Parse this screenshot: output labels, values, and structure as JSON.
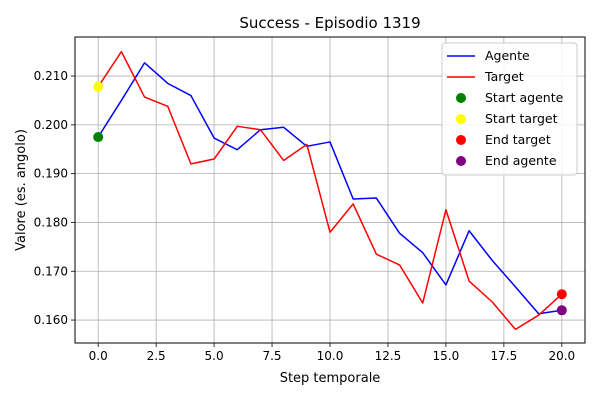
{
  "chart_data": {
    "type": "line",
    "title": "Success - Episodio 1319",
    "xlabel": "Step temporale",
    "ylabel": "Valore (es. angolo)",
    "xlim": [
      -1,
      21
    ],
    "ylim": [
      0.1553,
      0.218
    ],
    "xticks": [
      0.0,
      2.5,
      5.0,
      7.5,
      10.0,
      12.5,
      15.0,
      17.5,
      20.0
    ],
    "xtick_labels": [
      "0.0",
      "2.5",
      "5.0",
      "7.5",
      "10.0",
      "12.5",
      "15.0",
      "17.5",
      "20.0"
    ],
    "yticks": [
      0.16,
      0.17,
      0.18,
      0.19,
      0.2,
      0.21
    ],
    "ytick_labels": [
      "0.160",
      "0.170",
      "0.180",
      "0.190",
      "0.200",
      "0.210"
    ],
    "grid": true,
    "legend_position": "top-right",
    "x": [
      0,
      1,
      2,
      3,
      4,
      5,
      6,
      7,
      8,
      9,
      10,
      11,
      12,
      13,
      14,
      15,
      16,
      17,
      18,
      19,
      20
    ],
    "series": [
      {
        "name": "Agente",
        "color": "#0000ff",
        "values": [
          0.1975,
          0.205,
          0.2127,
          0.2085,
          0.206,
          0.1973,
          0.1949,
          0.199,
          0.1995,
          0.1956,
          0.1965,
          0.1848,
          0.185,
          0.1778,
          0.1738,
          0.1672,
          0.1783,
          0.1722,
          0.1668,
          0.1613,
          0.162
        ]
      },
      {
        "name": "Target",
        "color": "#ff0000",
        "values": [
          0.2078,
          0.215,
          0.2057,
          0.2038,
          0.192,
          0.193,
          0.1997,
          0.199,
          0.1927,
          0.196,
          0.178,
          0.1838,
          0.1735,
          0.1713,
          0.1635,
          0.1826,
          0.168,
          0.1637,
          0.1581,
          0.161,
          0.1653
        ]
      }
    ],
    "markers": [
      {
        "name": "Start agente",
        "x": 0,
        "y": 0.1975,
        "color": "#008000"
      },
      {
        "name": "Start target",
        "x": 0,
        "y": 0.2078,
        "color": "#ffff00"
      },
      {
        "name": "End target",
        "x": 20,
        "y": 0.1653,
        "color": "#ff0000"
      },
      {
        "name": "End agente",
        "x": 20,
        "y": 0.162,
        "color": "#800080"
      }
    ]
  }
}
